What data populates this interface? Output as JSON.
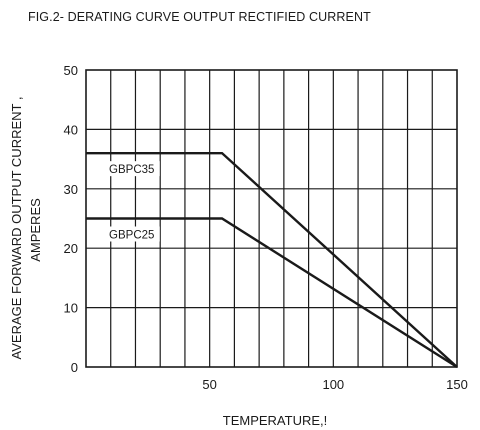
{
  "chart_data": {
    "type": "line",
    "title": "FIG.2- DERATING CURVE OUTPUT RECTIFIED CURRENT",
    "xlabel": "TEMPERATURE,!",
    "ylabel_line1": "AVERAGE  FORWARD  OUTPUT  CURRENT ,",
    "ylabel_line2": "AMPERES",
    "xlim": [
      0,
      150
    ],
    "ylim": [
      0,
      50
    ],
    "x_ticks": [
      50,
      100,
      150
    ],
    "y_ticks": [
      0,
      10,
      20,
      30,
      40,
      50
    ],
    "grid": true,
    "series": [
      {
        "name": "GBPC35",
        "x": [
          0,
          55,
          150
        ],
        "y": [
          36,
          36,
          0
        ]
      },
      {
        "name": "GBPC25",
        "x": [
          0,
          55,
          150
        ],
        "y": [
          25,
          25,
          0
        ]
      }
    ],
    "colors": {
      "line": "#1a1a1a",
      "grid": "#1a1a1a"
    }
  }
}
